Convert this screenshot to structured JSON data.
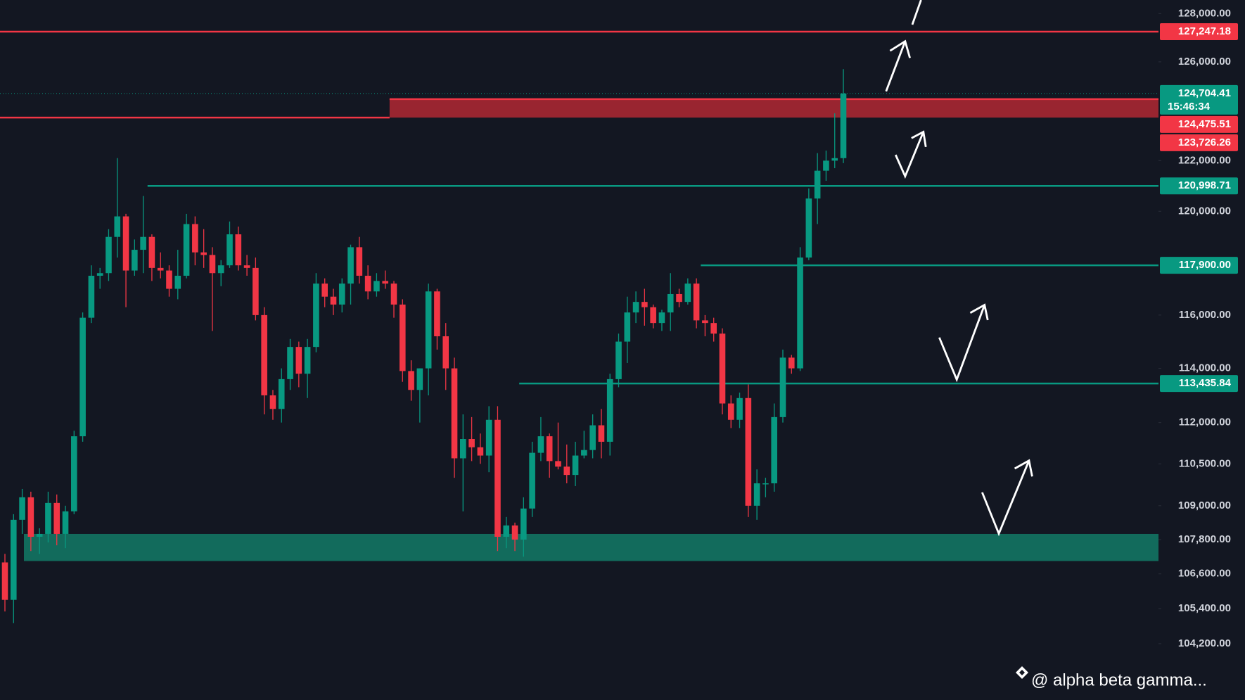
{
  "chart_data": {
    "type": "candlestick",
    "log_scale": true,
    "ylim": [
      102300,
      128570
    ],
    "yticks": [
      {
        "value": 128000,
        "label": "128,000.00"
      },
      {
        "value": 126000,
        "label": "126,000.00"
      },
      {
        "value": 122000,
        "label": "122,000.00"
      },
      {
        "value": 120000,
        "label": "120,000.00"
      },
      {
        "value": 116000,
        "label": "116,000.00"
      },
      {
        "value": 114000,
        "label": "114,000.00"
      },
      {
        "value": 112000,
        "label": "112,000.00"
      },
      {
        "value": 110500,
        "label": "110,500.00"
      },
      {
        "value": 109000,
        "label": "109,000.00"
      },
      {
        "value": 107800,
        "label": "107,800.00"
      },
      {
        "value": 106600,
        "label": "106,600.00"
      },
      {
        "value": 105400,
        "label": "105,400.00"
      },
      {
        "value": 104200,
        "label": "104,200.00"
      }
    ],
    "up_color": "#089981",
    "down_color": "#f23645",
    "open": [
      107000,
      105700,
      108500,
      109300,
      107900,
      108000,
      109100,
      108000,
      108800,
      111500,
      115900,
      117500,
      117600,
      119000,
      119800,
      117700,
      118500,
      119000,
      117800,
      117700,
      117000,
      117500,
      119500,
      118400,
      118300,
      117600,
      117900,
      119100,
      117900,
      117800,
      116000,
      113000,
      112500,
      113600,
      114800,
      113800,
      114800,
      117200,
      116700,
      116400,
      117200,
      118600,
      117500,
      116900,
      117300,
      117200,
      116400,
      113900,
      113200,
      114000,
      116900,
      115200,
      114000,
      110700,
      111400,
      111100,
      110800,
      112100,
      107900,
      108300,
      107800,
      108900,
      110900,
      111500,
      110600,
      110400,
      110100,
      110800,
      111000,
      111900,
      111300,
      113600,
      115000,
      116100,
      116500,
      116300,
      115700,
      116100,
      116800,
      116500,
      117200,
      115800,
      115700,
      115300,
      112700,
      112100,
      112900,
      109000,
      109800,
      109800,
      112200,
      114400,
      114000,
      118200,
      120500,
      121600,
      122000,
      122100
    ],
    "high": [
      107300,
      108700,
      109600,
      109500,
      108200,
      109500,
      109400,
      109000,
      111700,
      116100,
      117900,
      117800,
      119300,
      122100,
      119900,
      118900,
      120600,
      119100,
      118400,
      117900,
      118500,
      119900,
      119800,
      119300,
      118600,
      118100,
      119600,
      119400,
      118300,
      118200,
      116300,
      113200,
      114000,
      115100,
      115000,
      115100,
      117600,
      117400,
      117000,
      117400,
      118700,
      119000,
      117900,
      117600,
      117700,
      117300,
      116600,
      114300,
      114000,
      117200,
      117000,
      115700,
      114400,
      112300,
      112200,
      111600,
      112600,
      112600,
      108600,
      108400,
      109300,
      111300,
      112200,
      111600,
      112000,
      111200,
      111300,
      111700,
      112300,
      112500,
      113800,
      115300,
      116700,
      116900,
      117000,
      116400,
      116200,
      117600,
      117000,
      117400,
      117400,
      116000,
      115900,
      115500,
      113000,
      113100,
      113400,
      110300,
      110000,
      112700,
      114700,
      114500,
      118600,
      120900,
      122300,
      122400,
      123900,
      125700
    ],
    "low": [
      105300,
      104900,
      108000,
      107400,
      107300,
      107700,
      107600,
      107500,
      108700,
      111300,
      115700,
      117000,
      117300,
      118200,
      116300,
      117500,
      117600,
      117300,
      117400,
      116700,
      116600,
      117400,
      117900,
      117800,
      115400,
      117100,
      117800,
      117700,
      117500,
      115800,
      112300,
      112100,
      112000,
      113200,
      113300,
      112900,
      114600,
      116300,
      116000,
      116100,
      116400,
      117200,
      116600,
      116700,
      117000,
      115900,
      113500,
      112800,
      112000,
      113000,
      114700,
      113200,
      110000,
      108800,
      110600,
      110500,
      110200,
      107400,
      107500,
      107400,
      107200,
      108600,
      110600,
      110000,
      110300,
      109800,
      109700,
      110700,
      110700,
      110700,
      110800,
      113300,
      114200,
      115700,
      115600,
      115500,
      115400,
      115400,
      116300,
      116400,
      115500,
      115200,
      115000,
      112300,
      111800,
      111800,
      108600,
      108500,
      109300,
      109500,
      112000,
      113800,
      113900,
      118100,
      119500,
      121200,
      121700,
      121900
    ],
    "close": [
      105700,
      108500,
      109300,
      107900,
      108000,
      109100,
      108000,
      108800,
      111500,
      115900,
      117500,
      117600,
      119000,
      119800,
      117700,
      118500,
      119000,
      117800,
      117700,
      117000,
      117500,
      119500,
      118400,
      118300,
      117600,
      117900,
      119100,
      117900,
      117800,
      116000,
      113000,
      112500,
      113600,
      114800,
      113800,
      114800,
      117200,
      116700,
      116400,
      117200,
      118600,
      117500,
      116900,
      117300,
      117200,
      116400,
      113900,
      113200,
      114000,
      116900,
      115200,
      114000,
      110700,
      111400,
      111100,
      110800,
      112100,
      107900,
      108300,
      107800,
      108900,
      110900,
      111500,
      110600,
      110400,
      110100,
      110800,
      111000,
      111900,
      111300,
      113600,
      115000,
      116100,
      116500,
      116300,
      115700,
      116100,
      116800,
      116500,
      117200,
      115800,
      115700,
      115300,
      112700,
      112100,
      112900,
      109000,
      109800,
      109800,
      112200,
      114400,
      114000,
      118200,
      120500,
      121600,
      122000,
      122100,
      124704.41
    ],
    "levels": [
      {
        "value": 127247.18,
        "label": "127,247.18",
        "color": "#f23645"
      },
      {
        "value": 124475.51,
        "label": "124,475.51",
        "color": "#f23645"
      },
      {
        "value": 123726.26,
        "label": "123,726.26",
        "color": "#f23645"
      },
      {
        "value": 120998.71,
        "label": "120,998.71",
        "color": "#089981"
      },
      {
        "value": 117900,
        "label": "117,900.00",
        "color": "#089981"
      },
      {
        "value": 113435.84,
        "label": "113,435.84",
        "color": "#089981"
      }
    ],
    "zones": [
      {
        "top": 124475.51,
        "bottom": 123726.26,
        "color": "#b22833"
      },
      {
        "top": 108000,
        "bottom": 107050,
        "color": "#137a66"
      }
    ],
    "last_price": {
      "value": 124704.41,
      "label": "124,704.41",
      "countdown": "15:46:34",
      "color": "#089981"
    },
    "watermark": "@ alpha beta gamma..."
  }
}
